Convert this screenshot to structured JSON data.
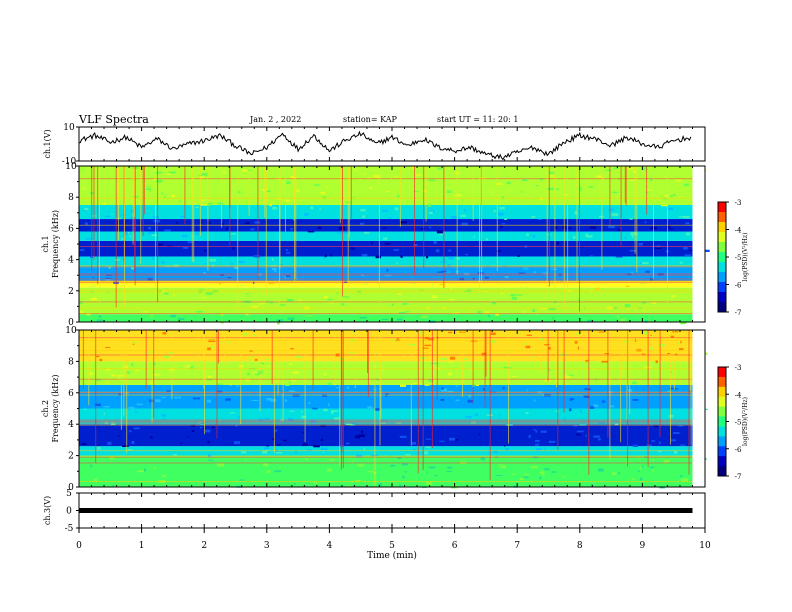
{
  "header": {
    "title": "VLF Spectra",
    "date": "Jan. 2 , 2022",
    "station": "station= KAP",
    "start_ut": "start UT = 11: 20: 1"
  },
  "chart_data": [
    {
      "type": "line",
      "panel": "ch1-waveform",
      "ylabel": "ch.1(V)",
      "ylim": [
        -10,
        10
      ],
      "y_ticks": [
        "10",
        "-10"
      ],
      "xlim": [
        0,
        10
      ],
      "series": [
        {
          "x": [
            0,
            0.25,
            0.5,
            0.75,
            1.0,
            1.25,
            1.5,
            1.75,
            2.0,
            2.25,
            2.5,
            2.75,
            3.0,
            3.25,
            3.5,
            3.75,
            4.0,
            4.25,
            4.5,
            4.75,
            5.0,
            5.25,
            5.5,
            5.75,
            6.0,
            6.25,
            6.5,
            6.75,
            7.0,
            7.25,
            7.5,
            7.75,
            8.0,
            8.25,
            8.5,
            8.75,
            9.0,
            9.25,
            9.5,
            9.8
          ],
          "y": [
            2,
            5,
            1,
            4,
            -2,
            3,
            -3,
            0,
            2,
            5,
            -1,
            -6,
            -2,
            6,
            -3,
            5,
            -4,
            2,
            6,
            0,
            4,
            -1,
            3,
            -2,
            -4,
            -2,
            -6,
            -8,
            -5,
            -2,
            -6,
            1,
            5,
            3,
            -1,
            4,
            0,
            -2,
            2,
            4
          ]
        }
      ],
      "color": "#000000"
    },
    {
      "type": "heatmap",
      "panel": "ch1-spectrogram",
      "ylabel": "ch.1 Frequency (kHz)",
      "ylim": [
        0,
        10
      ],
      "y_ticks": [
        "0",
        "2",
        "4",
        "6",
        "8",
        "10"
      ],
      "xlim": [
        0,
        10
      ],
      "colorbar": {
        "label": "log(PSD)(V²/Hz)",
        "range": [
          -7,
          -3
        ],
        "ticks": [
          "-3",
          "-4",
          "-5",
          "-6",
          "-7"
        ]
      },
      "bands_khz": [
        {
          "from": 0.0,
          "to": 0.5,
          "level": "green"
        },
        {
          "from": 0.5,
          "to": 2.2,
          "level": "green-yellow"
        },
        {
          "from": 2.2,
          "to": 2.6,
          "level": "yellow"
        },
        {
          "from": 2.6,
          "to": 3.5,
          "level": "cyan-blue"
        },
        {
          "from": 3.5,
          "to": 4.2,
          "level": "cyan"
        },
        {
          "from": 4.2,
          "to": 5.2,
          "level": "blue"
        },
        {
          "from": 5.2,
          "to": 5.8,
          "level": "cyan"
        },
        {
          "from": 5.8,
          "to": 6.6,
          "level": "blue"
        },
        {
          "from": 6.6,
          "to": 7.5,
          "level": "cyan"
        },
        {
          "from": 7.5,
          "to": 10,
          "level": "green-yellow"
        }
      ]
    },
    {
      "type": "heatmap",
      "panel": "ch2-spectrogram",
      "ylabel": "ch.2 Frequency (kHz)",
      "ylim": [
        0,
        10
      ],
      "y_ticks": [
        "0",
        "2",
        "4",
        "6",
        "8",
        "10"
      ],
      "xlim": [
        0,
        10
      ],
      "colorbar": {
        "label": "log(PSD)(V²/Hz)",
        "range": [
          -7,
          -3
        ],
        "ticks": [
          "-3",
          "-4",
          "-5",
          "-6",
          "-7"
        ]
      },
      "bands_khz": [
        {
          "from": 0.0,
          "to": 2.0,
          "level": "green"
        },
        {
          "from": 2.0,
          "to": 2.6,
          "level": "cyan"
        },
        {
          "from": 2.6,
          "to": 4.0,
          "level": "blue"
        },
        {
          "from": 4.0,
          "to": 5.0,
          "level": "cyan"
        },
        {
          "from": 5.0,
          "to": 6.5,
          "level": "cyan-blue"
        },
        {
          "from": 6.5,
          "to": 8.0,
          "level": "green-yellow"
        },
        {
          "from": 8.0,
          "to": 10,
          "level": "yellow-red"
        }
      ]
    },
    {
      "type": "line",
      "panel": "ch3-waveform",
      "ylabel": "ch.3(V)",
      "ylim": [
        -5,
        5
      ],
      "y_ticks": [
        "5",
        "0",
        "-5"
      ],
      "xlim": [
        0,
        10
      ],
      "series": [
        {
          "x": [
            0,
            9.8
          ],
          "y": [
            0,
            0
          ]
        }
      ],
      "color": "#000000"
    }
  ],
  "xaxis": {
    "label": "Time (min)",
    "ticks": [
      "0",
      "1",
      "2",
      "3",
      "4",
      "5",
      "6",
      "7",
      "8",
      "9",
      "10"
    ]
  }
}
